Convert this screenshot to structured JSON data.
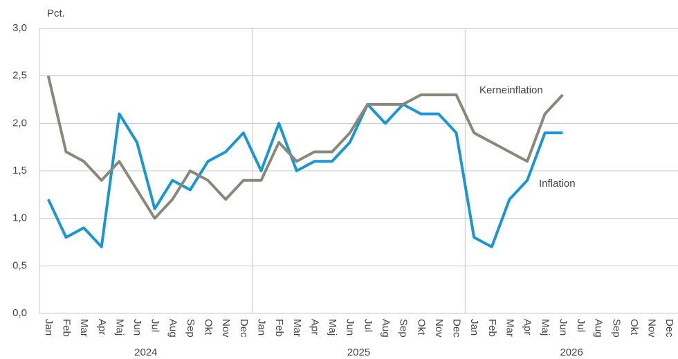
{
  "chart_data": {
    "type": "line",
    "y_label": "Pct.",
    "categories": [
      "Jan",
      "Feb",
      "Mar",
      "Apr",
      "Maj",
      "Jun",
      "Jul",
      "Aug",
      "Sep",
      "Okt",
      "Nov",
      "Dec",
      "Jan",
      "Feb",
      "Mar",
      "Apr",
      "Maj",
      "Jun",
      "Jul",
      "Aug",
      "Sep",
      "Okt",
      "Nov",
      "Dec",
      "Jan",
      "Feb",
      "Mar",
      "Apr",
      "Maj",
      "Jun",
      "Jul",
      "Aug",
      "Sep",
      "Okt",
      "Nov",
      "Dec"
    ],
    "groups": [
      {
        "label": "2024",
        "count": 12
      },
      {
        "label": "2025",
        "count": 12
      },
      {
        "label": "2026",
        "count": 12
      }
    ],
    "series": [
      {
        "name": "Inflation",
        "color": "#1a96d4",
        "values": [
          1.2,
          0.8,
          0.9,
          0.7,
          2.1,
          1.8,
          1.1,
          1.4,
          1.3,
          1.6,
          1.7,
          1.9,
          1.5,
          2.0,
          1.5,
          1.6,
          1.6,
          1.8,
          2.2,
          2.0,
          2.2,
          2.1,
          2.1,
          1.9,
          0.8,
          0.7,
          1.2,
          1.4,
          1.9,
          1.9,
          null,
          null,
          null,
          null,
          null,
          null
        ]
      },
      {
        "name": "Kerneinflation",
        "color": "#8a877b",
        "values": [
          2.5,
          1.7,
          1.6,
          1.4,
          1.6,
          1.3,
          1.0,
          1.2,
          1.5,
          1.4,
          1.2,
          1.4,
          1.4,
          1.8,
          1.6,
          1.7,
          1.7,
          1.9,
          2.2,
          2.2,
          2.2,
          2.3,
          2.3,
          2.3,
          1.9,
          1.8,
          1.7,
          1.6,
          2.1,
          2.3,
          null,
          null,
          null,
          null,
          null,
          null
        ]
      }
    ],
    "ylim": [
      0,
      3
    ],
    "yticks": [
      {
        "value": 0,
        "label": "0,0"
      },
      {
        "value": 0.5,
        "label": "0,5"
      },
      {
        "value": 1,
        "label": "1,0"
      },
      {
        "value": 1.5,
        "label": "1,5"
      },
      {
        "value": 2,
        "label": "2,0"
      },
      {
        "value": 2.5,
        "label": "2,5"
      },
      {
        "value": 3,
        "label": "3,0"
      }
    ],
    "grid": true
  }
}
